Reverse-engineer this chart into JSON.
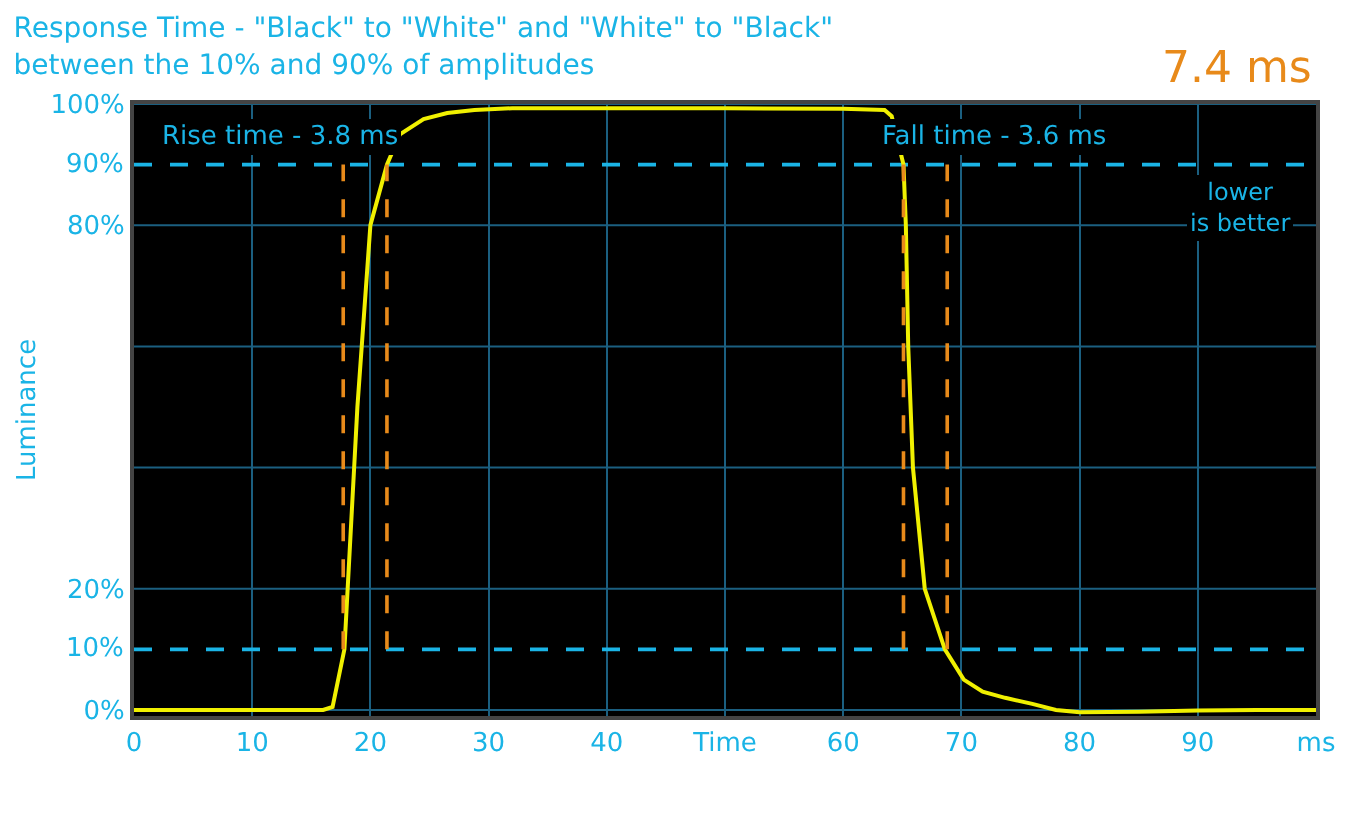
{
  "chart_data": {
    "type": "line",
    "title": "Response Time - \"Black\" to \"White\" and \"White\" to \"Black\"",
    "subtitle": "between the 10% and 90% of amplitudes",
    "xlabel": null,
    "ylabel": "Luminance",
    "xlim": [
      0,
      100
    ],
    "xticks": [
      0,
      10,
      20,
      30,
      40,
      {
        "value": 50,
        "label": "Time"
      },
      60,
      70,
      80,
      90,
      {
        "value": 100,
        "label": "ms"
      }
    ],
    "ylim": [
      -1,
      100
    ],
    "yticks": [
      {
        "value": 0,
        "label": "0%"
      },
      {
        "value": 20,
        "label": "20%"
      },
      {
        "value": 40,
        "label": null
      },
      {
        "value": 60,
        "label": null
      },
      {
        "value": 80,
        "label": "80%"
      },
      {
        "value": 100,
        "label": "100%"
      }
    ],
    "grid": true,
    "marker": "none",
    "series": [
      {
        "color": "#f0f000",
        "line_style": "solid",
        "x": [
          0,
          10,
          16.0,
          16.8,
          17.8,
          18.9,
          20.0,
          21.4,
          22.5,
          24.5,
          26.5,
          28.8,
          32,
          40,
          50,
          60,
          63.5,
          64.1,
          65.1,
          65.3,
          65.5,
          65.9,
          66.9,
          68.6,
          70.2,
          71.8,
          73.7,
          76,
          78,
          80,
          85,
          90,
          95,
          100
        ],
        "values": [
          0,
          0,
          0,
          0.5,
          10,
          50,
          80,
          90,
          95,
          97.5,
          98.5,
          99,
          99.3,
          99.3,
          99.3,
          99.2,
          99,
          98,
          90,
          80,
          60,
          40,
          20,
          10,
          5,
          3,
          2,
          1,
          0,
          -0.4,
          -0.3,
          -0.1,
          0,
          0
        ]
      },
      {
        "color": "#e88a1a",
        "line_style": "dashed",
        "x": [
          17.7,
          17.7
        ],
        "values": [
          10,
          90
        ]
      },
      {
        "color": "#e88a1a",
        "line_style": "dashed",
        "x": [
          21.4,
          21.4
        ],
        "values": [
          10,
          90
        ]
      },
      {
        "color": "#e88a1a",
        "line_style": "dashed",
        "x": [
          65.1,
          65.1
        ],
        "values": [
          10,
          90
        ]
      },
      {
        "color": "#e88a1a",
        "line_style": "dashed",
        "x": [
          68.8,
          68.8
        ],
        "values": [
          10,
          90
        ]
      }
    ],
    "ref_lines": [
      {
        "axis": "y",
        "value": 10,
        "label": "10%",
        "color": "#1ab4e6",
        "line_style": "dashed"
      },
      {
        "axis": "y",
        "value": 90,
        "label": "90%",
        "color": "#1ab4e6",
        "line_style": "dashed"
      }
    ],
    "annotations": [
      "Rise time - 3.8 ms",
      "Fall time - 3.6 ms",
      "lower is better",
      "7.4 ms"
    ]
  }
}
